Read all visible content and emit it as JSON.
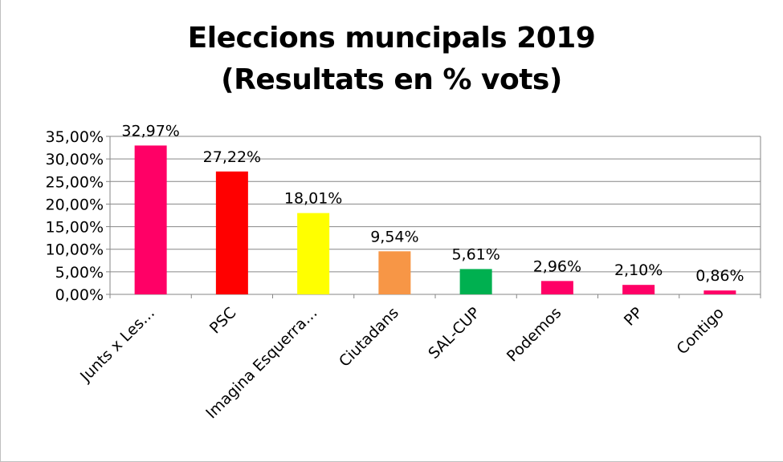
{
  "chart_data": {
    "type": "bar",
    "title_lines": [
      "Eleccions muncipals 2019",
      "(Resultats en % vots)"
    ],
    "categories": [
      "Junts x Les…",
      "PSC",
      "Imagina Esquerra…",
      "Ciutadans",
      "SAL-CUP",
      "Podemos",
      "PP",
      "Contigo"
    ],
    "values": [
      32.97,
      27.22,
      18.01,
      9.54,
      5.61,
      2.96,
      2.1,
      0.86
    ],
    "data_labels": [
      "32,97%",
      "27,22%",
      "18,01%",
      "9,54%",
      "5,61%",
      "2,96%",
      "2,10%",
      "0,86%"
    ],
    "colors": [
      "#ff0066",
      "#ff0000",
      "#ffff00",
      "#f79646",
      "#00b050",
      "#ff0066",
      "#ff0066",
      "#ff0066"
    ],
    "ylim": [
      0,
      35
    ],
    "yticks": [
      0,
      5,
      10,
      15,
      20,
      25,
      30,
      35
    ],
    "ytick_labels": [
      "0,00%",
      "5,00%",
      "10,00%",
      "15,00%",
      "20,00%",
      "25,00%",
      "30,00%",
      "35,00%"
    ],
    "grid": true,
    "xlabel": "",
    "ylabel": ""
  }
}
